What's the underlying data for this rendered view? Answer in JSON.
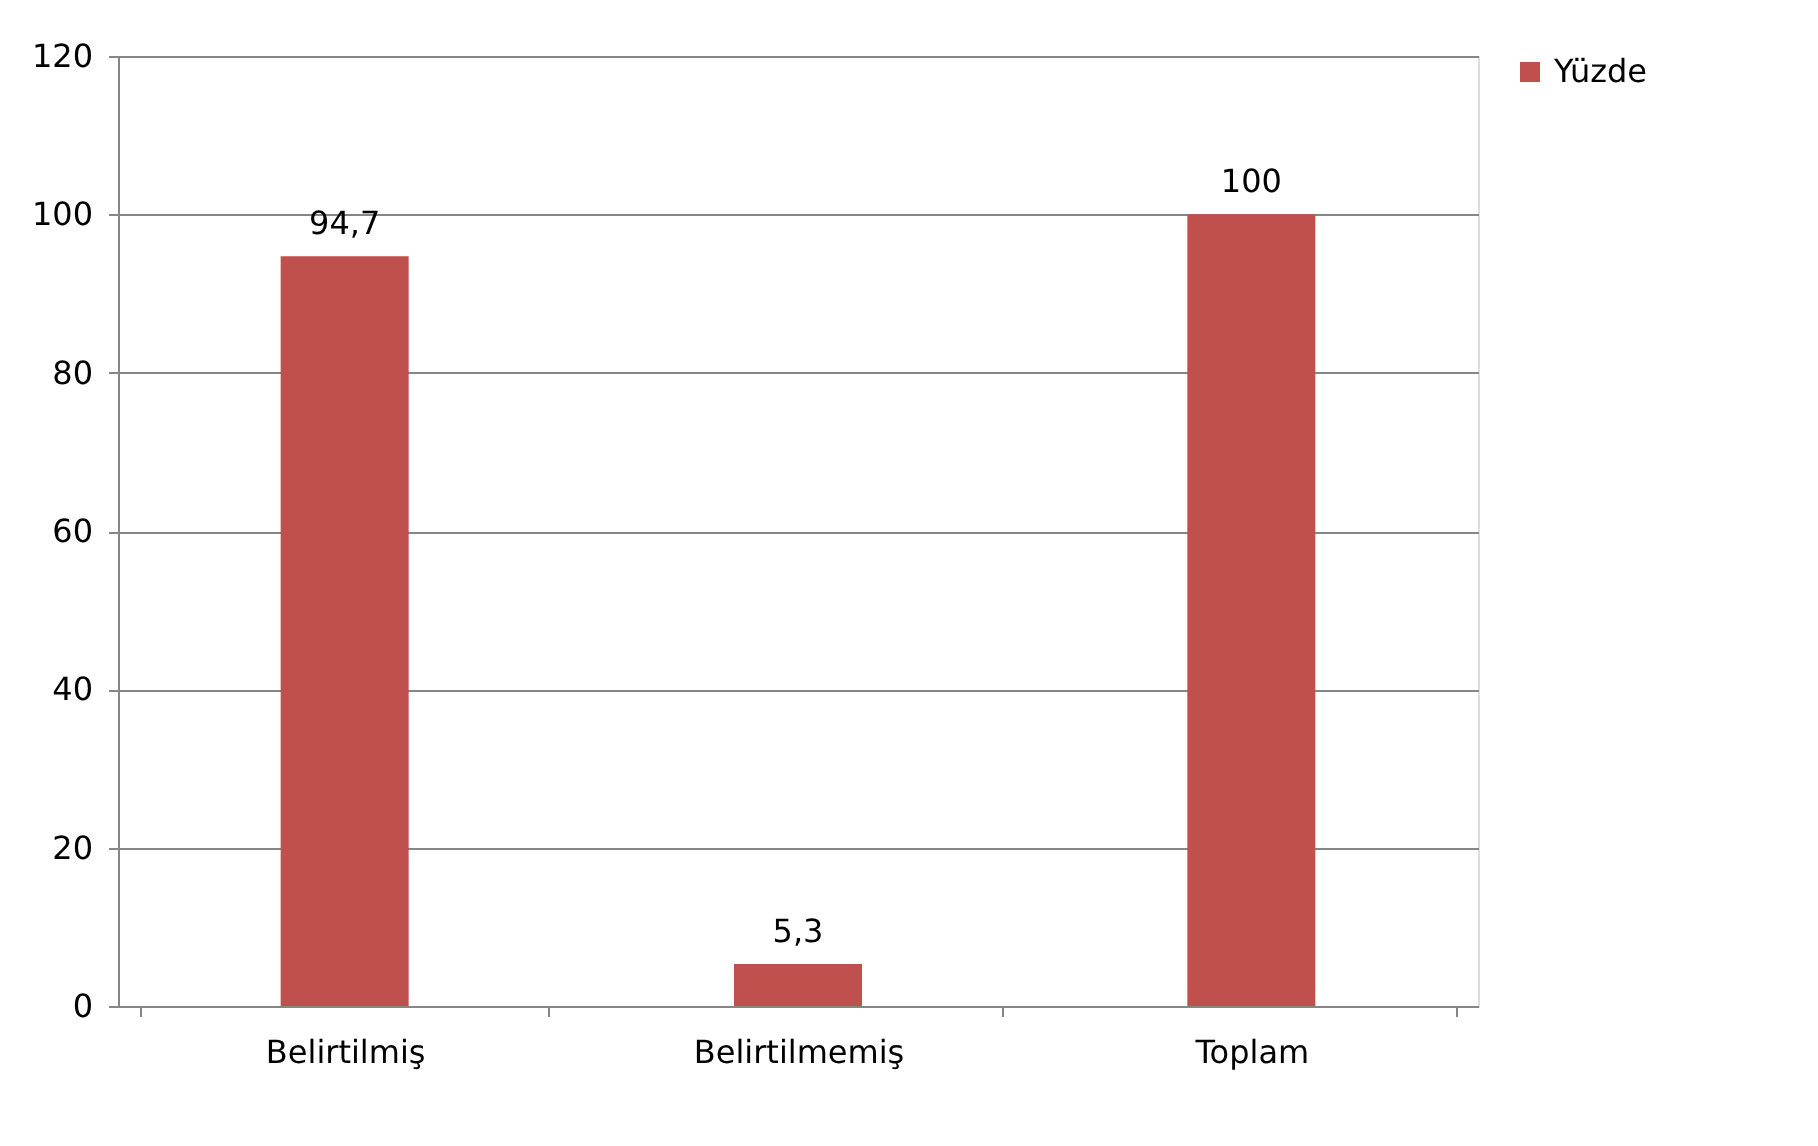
{
  "chart_data": {
    "type": "bar",
    "categories": [
      "Belirtilmiş",
      "Belirtilmemiş",
      "Toplam"
    ],
    "series": [
      {
        "name": "Yüzde",
        "color": "#c0504d",
        "values": [
          94.7,
          5.3,
          100
        ],
        "value_labels": [
          "94,7",
          "5,3",
          "100"
        ]
      }
    ],
    "ylim": [
      0,
      120
    ],
    "yticks": [
      0,
      20,
      40,
      60,
      80,
      100,
      120
    ],
    "grid": "y",
    "legend": "right"
  }
}
